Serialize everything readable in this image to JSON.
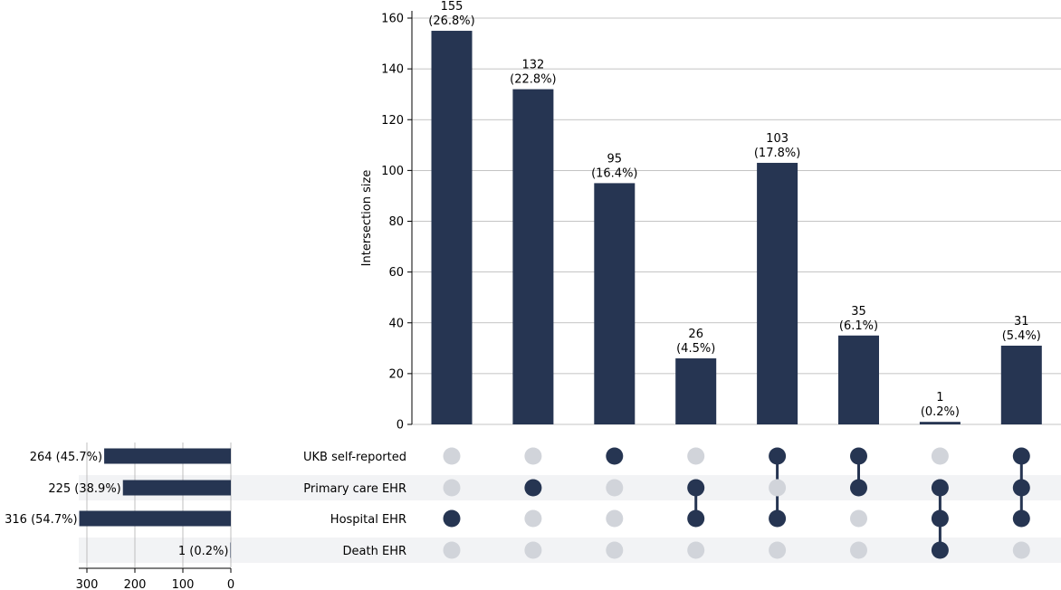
{
  "colors": {
    "bar": "#263552",
    "dot_active": "#263552",
    "dot_inactive": "#d1d4da",
    "band": "#f2f3f5",
    "grid": "#b0b0b0",
    "axis": "#000000"
  },
  "chart_data": {
    "type": "bar",
    "subtype": "upset",
    "ylabel": "Intersection size",
    "ylim": [
      0,
      163
    ],
    "yticks": [
      0,
      20,
      40,
      60,
      80,
      100,
      120,
      140,
      160
    ],
    "grid": true,
    "sets": [
      "UKB self-reported",
      "Primary care EHR",
      "Hospital EHR",
      "Death EHR"
    ],
    "set_sizes": [
      264,
      225,
      316,
      1
    ],
    "set_size_labels": [
      "264 (45.7%)",
      "225 (38.9%)",
      "316 (54.7%)",
      "1 (0.2%)"
    ],
    "set_size_xlim": [
      0,
      316
    ],
    "set_size_ticks": [
      300,
      200,
      100,
      0
    ],
    "intersections": [
      {
        "value": 155,
        "pct": "(26.8%)",
        "members": [
          2
        ]
      },
      {
        "value": 132,
        "pct": "(22.8%)",
        "members": [
          1
        ]
      },
      {
        "value": 95,
        "pct": "(16.4%)",
        "members": [
          0
        ]
      },
      {
        "value": 26,
        "pct": "(4.5%)",
        "members": [
          1,
          2
        ]
      },
      {
        "value": 103,
        "pct": "(17.8%)",
        "members": [
          0,
          2
        ]
      },
      {
        "value": 35,
        "pct": "(6.1%)",
        "members": [
          0,
          1
        ]
      },
      {
        "value": 1,
        "pct": "(0.2%)",
        "members": [
          1,
          2,
          3
        ]
      },
      {
        "value": 31,
        "pct": "(5.4%)",
        "members": [
          0,
          1,
          2
        ]
      }
    ]
  }
}
